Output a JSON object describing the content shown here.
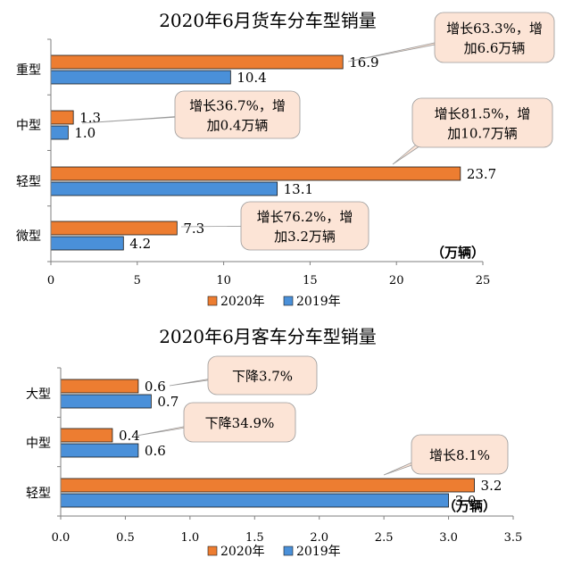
{
  "chart_data": [
    {
      "type": "bar",
      "orientation": "horizontal",
      "title": "2020年6月货车分车型销量",
      "unit_label": "（万辆）",
      "categories": [
        "重型",
        "中型",
        "轻型",
        "微型"
      ],
      "series": [
        {
          "name": "2020年",
          "color": "#ED7D31",
          "values": [
            16.9,
            1.3,
            23.7,
            7.3
          ],
          "value_labels": [
            "16.9",
            "1.3",
            "23.7",
            "7.3"
          ]
        },
        {
          "name": "2019年",
          "color": "#4A90D9",
          "values": [
            10.4,
            1.0,
            13.1,
            4.2
          ],
          "value_labels": [
            "10.4",
            "1.0",
            "13.1",
            "4.2"
          ]
        }
      ],
      "xlim": [
        0,
        25
      ],
      "xticks": [
        0,
        5,
        10,
        15,
        20,
        25
      ],
      "xtick_labels": [
        "0",
        "5",
        "10",
        "15",
        "20",
        "25"
      ],
      "legend_position": "bottom",
      "grid": false,
      "annotations": [
        {
          "category": "重型",
          "lines": [
            "增长63.3%，增",
            "加6.6万辆"
          ]
        },
        {
          "category": "中型",
          "lines": [
            "增长36.7%，增",
            "加0.4万辆"
          ]
        },
        {
          "category": "轻型",
          "lines": [
            "增长81.5%，增",
            "加10.7万辆"
          ]
        },
        {
          "category": "微型",
          "lines": [
            "增长76.2%，增",
            "加3.2万辆"
          ]
        }
      ]
    },
    {
      "type": "bar",
      "orientation": "horizontal",
      "title": "2020年6月客车分车型销量",
      "unit_label": "（万辆）",
      "categories": [
        "大型",
        "中型",
        "轻型"
      ],
      "series": [
        {
          "name": "2020年",
          "color": "#ED7D31",
          "values": [
            0.6,
            0.4,
            3.2
          ],
          "value_labels": [
            "0.6",
            "0.4",
            "3.2"
          ]
        },
        {
          "name": "2019年",
          "color": "#4A90D9",
          "values": [
            0.7,
            0.6,
            3.0
          ],
          "value_labels": [
            "0.7",
            "0.6",
            "3.0"
          ]
        }
      ],
      "xlim": [
        0,
        3.5
      ],
      "xticks": [
        0,
        0.5,
        1.0,
        1.5,
        2.0,
        2.5,
        3.0,
        3.5
      ],
      "xtick_labels": [
        "0.0",
        "0.5",
        "1.0",
        "1.5",
        "2.0",
        "2.5",
        "3.0",
        "3.5"
      ],
      "legend_position": "bottom",
      "grid": false,
      "annotations": [
        {
          "category": "大型",
          "lines": [
            "下降3.7%"
          ]
        },
        {
          "category": "中型",
          "lines": [
            "下降34.9%"
          ]
        },
        {
          "category": "轻型",
          "lines": [
            "增长8.1%"
          ]
        }
      ]
    }
  ],
  "colors": {
    "bar_2020": "#ED7D31",
    "bar_2019": "#4A90D9",
    "callout_fill": "#FCE4D6",
    "axis": "#7F7F7F"
  }
}
